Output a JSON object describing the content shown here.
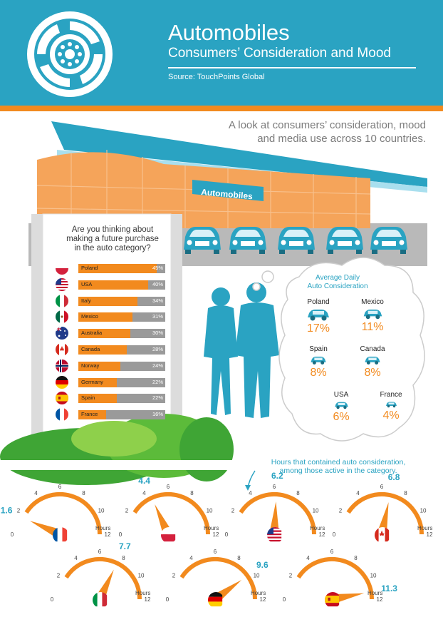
{
  "header": {
    "title": "Automobiles",
    "subtitle": "Consumers’ Consideration and Mood",
    "source": "Source: TouchPoints Global"
  },
  "intro_lines": [
    "A look at consumers’ consideration, mood",
    "and media use across 10 countries."
  ],
  "store_sign": "Automobiles",
  "colors": {
    "brand": "#2aa3c2",
    "accent": "#f28a1e",
    "bar_bg": "#9a9a9a",
    "green": "#3fa535"
  },
  "chart_data": [
    {
      "type": "bar",
      "title_lines": [
        "Are you thinking about",
        "making a future purchase",
        "in the auto category?"
      ],
      "orientation": "horizontal",
      "unit": "%",
      "categories": [
        "Poland",
        "USA",
        "Italy",
        "Mexico",
        "Australia",
        "Canada",
        "Norway",
        "Germany",
        "Spain",
        "France"
      ],
      "values": [
        45,
        40,
        34,
        31,
        30,
        28,
        24,
        22,
        22,
        16
      ],
      "value_labels": [
        "45%",
        "40%",
        "34%",
        "31%",
        "30%",
        "28%",
        "24%",
        "22%",
        "22%",
        "16%"
      ]
    },
    {
      "type": "table",
      "title_lines": [
        "Average Daily",
        "Auto Consideration"
      ],
      "rows": [
        {
          "country": "Poland",
          "value": 17,
          "label": "17%"
        },
        {
          "country": "Mexico",
          "value": 11,
          "label": "11%"
        },
        {
          "country": "Spain",
          "value": 8,
          "label": "8%"
        },
        {
          "country": "Canada",
          "value": 8,
          "label": "8%"
        },
        {
          "country": "USA",
          "value": 6,
          "label": "6%"
        },
        {
          "country": "France",
          "value": 4,
          "label": "4%"
        }
      ]
    },
    {
      "type": "gauge",
      "title_lines": [
        "Hours that contained auto consideration,",
        "among those active in the category."
      ],
      "scale_labels": [
        "0",
        "2",
        "4",
        "6",
        "8",
        "10",
        "12"
      ],
      "unit_label": "Hours",
      "range": [
        0,
        12
      ],
      "gauges": [
        {
          "country": "France",
          "value": 1.6,
          "label": "1.6"
        },
        {
          "country": "Poland",
          "value": 4.4,
          "label": "4.4"
        },
        {
          "country": "USA",
          "value": 6.2,
          "label": "6.2"
        },
        {
          "country": "Canada",
          "value": 6.8,
          "label": "6.8"
        },
        {
          "country": "Italy",
          "value": 7.7,
          "label": "7.7"
        },
        {
          "country": "Germany",
          "value": 9.6,
          "label": "9.6"
        },
        {
          "country": "Spain",
          "value": 11.3,
          "label": "11.3"
        }
      ]
    }
  ]
}
